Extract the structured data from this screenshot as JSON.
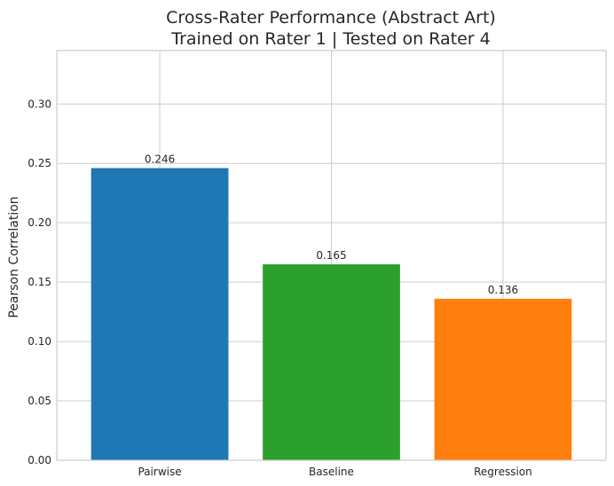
{
  "chart_data": {
    "type": "bar",
    "title_line1": "Cross-Rater Performance (Abstract Art)",
    "title_line2": "Trained on Rater 1 | Tested on Rater 4",
    "xlabel": "",
    "ylabel": "Pearson Correlation",
    "categories": [
      "Pairwise",
      "Baseline",
      "Regression"
    ],
    "values": [
      0.246,
      0.165,
      0.136
    ],
    "value_labels": [
      "0.246",
      "0.165",
      "0.136"
    ],
    "colors": [
      "#1f77b4",
      "#2ca02c",
      "#ff7f0e"
    ],
    "ylim": [
      0,
      0.345
    ],
    "yticks": [
      0.0,
      0.05,
      0.1,
      0.15,
      0.2,
      0.25,
      0.3
    ],
    "ytick_labels": [
      "0.00",
      "0.05",
      "0.10",
      "0.15",
      "0.20",
      "0.25",
      "0.30"
    ],
    "grid": true,
    "legend": "none"
  }
}
